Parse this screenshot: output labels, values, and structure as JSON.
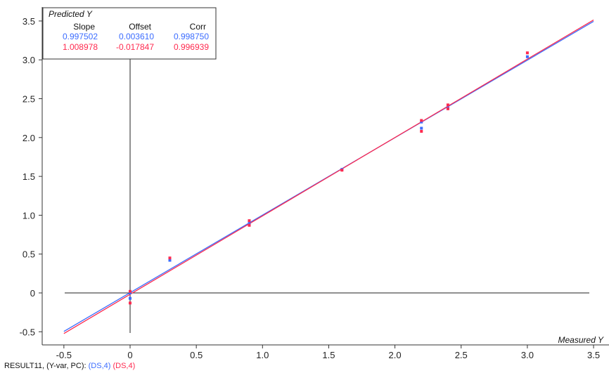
{
  "chart_data": {
    "type": "scatter",
    "x_label": "Measured Y",
    "y_label": "Predicted Y",
    "xlim": [
      -0.7,
      3.6
    ],
    "ylim": [
      -0.65,
      3.6
    ],
    "x_ticks": [
      "-0.5",
      "0",
      "0.5",
      "1.0",
      "1.5",
      "2.0",
      "2.5",
      "3.0",
      "3.5"
    ],
    "x_tick_values": [
      -0.5,
      0,
      0.5,
      1.0,
      1.5,
      2.0,
      2.5,
      3.0,
      3.5
    ],
    "y_ticks": [
      "-0.5",
      "0",
      "0.5",
      "1.0",
      "1.5",
      "2.0",
      "2.5",
      "3.0",
      "3.5"
    ],
    "y_tick_values": [
      -0.5,
      0,
      0.5,
      1.0,
      1.5,
      2.0,
      2.5,
      3.0,
      3.5
    ],
    "grid": false,
    "stats_table": {
      "headers": [
        "Slope",
        "Offset",
        "Corr"
      ],
      "rows": [
        {
          "color": "#3b6cff",
          "values": [
            "0.997502",
            "0.003610",
            "0.998750"
          ]
        },
        {
          "color": "#ff2a4f",
          "values": [
            "1.008978",
            "-0.017847",
            "0.996939"
          ]
        }
      ]
    },
    "series": [
      {
        "color": "#3b6cff",
        "slope": 0.997502,
        "offset": 0.00361,
        "points": [
          {
            "x": 0,
            "y": 0.0
          },
          {
            "x": 0,
            "y": -0.07
          },
          {
            "x": 0.3,
            "y": 0.42
          },
          {
            "x": 0.9,
            "y": 0.88
          },
          {
            "x": 0.9,
            "y": 0.92
          },
          {
            "x": 1.6,
            "y": 1.59
          },
          {
            "x": 2.2,
            "y": 2.12
          },
          {
            "x": 2.2,
            "y": 2.2
          },
          {
            "x": 2.4,
            "y": 2.38
          },
          {
            "x": 3.0,
            "y": 3.04
          }
        ]
      },
      {
        "color": "#ff2a4f",
        "slope": 1.008978,
        "offset": -0.017847,
        "points": [
          {
            "x": 0,
            "y": -0.13
          },
          {
            "x": 0,
            "y": 0.02
          },
          {
            "x": 0.3,
            "y": 0.45
          },
          {
            "x": 0.9,
            "y": 0.87
          },
          {
            "x": 0.9,
            "y": 0.93
          },
          {
            "x": 1.6,
            "y": 1.58
          },
          {
            "x": 2.2,
            "y": 2.08
          },
          {
            "x": 2.2,
            "y": 2.22
          },
          {
            "x": 2.4,
            "y": 2.37
          },
          {
            "x": 2.4,
            "y": 2.42
          },
          {
            "x": 3.0,
            "y": 3.09
          }
        ]
      }
    ]
  },
  "footer": {
    "prefix": "RESULT11, (Y-var, PC):",
    "blue_tag": "(DS,4)",
    "red_tag": "(DS,4)"
  }
}
